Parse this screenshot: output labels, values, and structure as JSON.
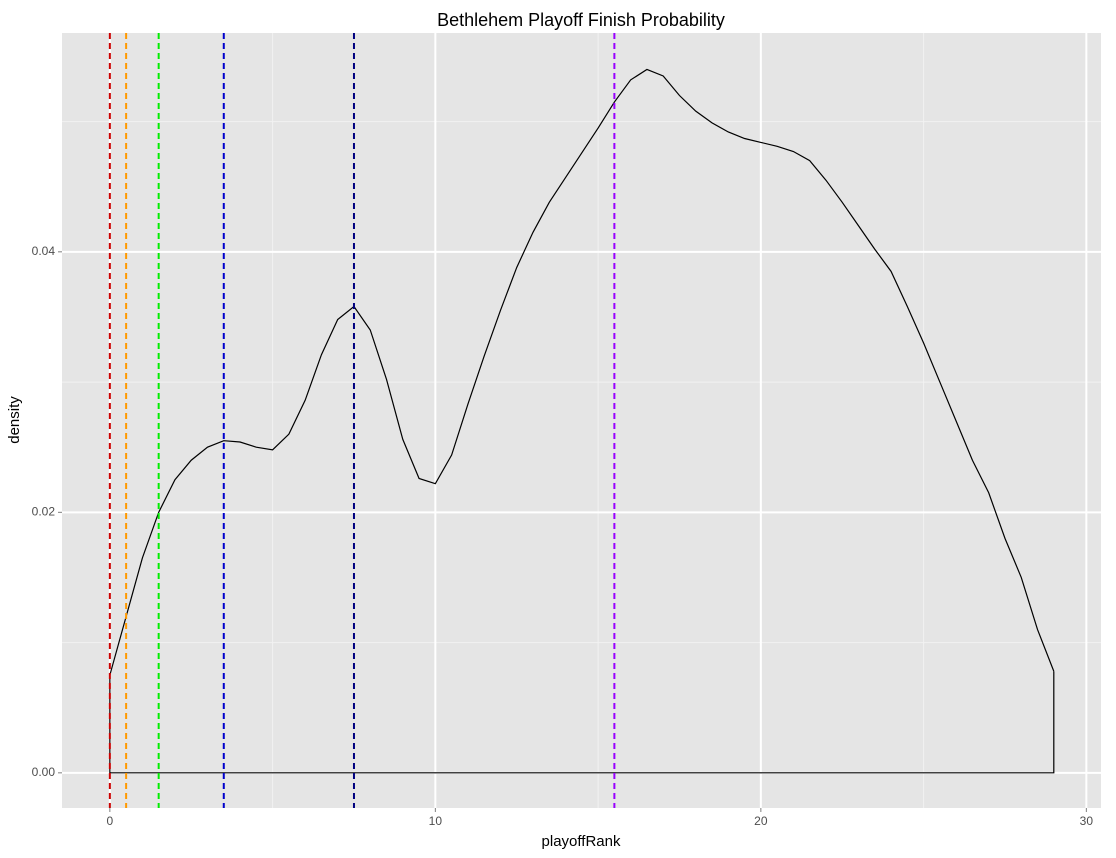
{
  "chart_data": {
    "type": "density",
    "title": "Bethlehem Playoff Finish Probability",
    "x_label": "playoffRank",
    "y_label": "density",
    "x": [
      0,
      0.5,
      1,
      1.5,
      2,
      2.5,
      3,
      3.5,
      4,
      4.5,
      5,
      5.5,
      6,
      6.5,
      7,
      7.5,
      8,
      8.5,
      9,
      9.5,
      10,
      10.5,
      11,
      11.5,
      12,
      12.5,
      13,
      13.5,
      14,
      14.5,
      15,
      15.5,
      16,
      16.5,
      17,
      17.5,
      18,
      18.5,
      19,
      19.5,
      20,
      20.5,
      21,
      21.5,
      22,
      22.5,
      23,
      23.5,
      24,
      24.5,
      25,
      25.5,
      26,
      26.5,
      27,
      27.5,
      28,
      28.5,
      29
    ],
    "values": [
      0.0075,
      0.012,
      0.0165,
      0.02,
      0.0225,
      0.024,
      0.025,
      0.0255,
      0.0254,
      0.025,
      0.0248,
      0.026,
      0.0286,
      0.0321,
      0.0348,
      0.0358,
      0.034,
      0.0302,
      0.0256,
      0.0226,
      0.0222,
      0.0244,
      0.0283,
      0.032,
      0.0355,
      0.0388,
      0.0415,
      0.0438,
      0.0457,
      0.0476,
      0.0495,
      0.0515,
      0.0532,
      0.054,
      0.0535,
      0.052,
      0.0508,
      0.0499,
      0.0492,
      0.0487,
      0.0484,
      0.0481,
      0.0477,
      0.047,
      0.0455,
      0.0438,
      0.042,
      0.0402,
      0.0385,
      0.0358,
      0.033,
      0.03,
      0.027,
      0.024,
      0.0215,
      0.018,
      0.015,
      0.011,
      0.0078
    ],
    "color": "#000000",
    "vlines": [
      {
        "x": 0,
        "color": "#cc0000"
      },
      {
        "x": 0.5,
        "color": "#ff9900"
      },
      {
        "x": 1.5,
        "color": "#00ee00"
      },
      {
        "x": 3.5,
        "color": "#0000cc"
      },
      {
        "x": 7.5,
        "color": "#000080"
      },
      {
        "x": 15.5,
        "color": "#9900ff"
      }
    ],
    "xlim": [
      -1.47,
      30.45
    ],
    "ylim": [
      -0.0027,
      0.0568
    ],
    "xticks": [
      0,
      10,
      20,
      30
    ],
    "yticks": [
      {
        "value": 0,
        "label": "0.00"
      },
      {
        "value": 0.02,
        "label": "0.02"
      },
      {
        "value": 0.04,
        "label": "0.04"
      }
    ],
    "xminor": [
      5,
      15,
      25
    ],
    "yminor": [
      0.01,
      0.03,
      0.05
    ],
    "grid": true
  }
}
